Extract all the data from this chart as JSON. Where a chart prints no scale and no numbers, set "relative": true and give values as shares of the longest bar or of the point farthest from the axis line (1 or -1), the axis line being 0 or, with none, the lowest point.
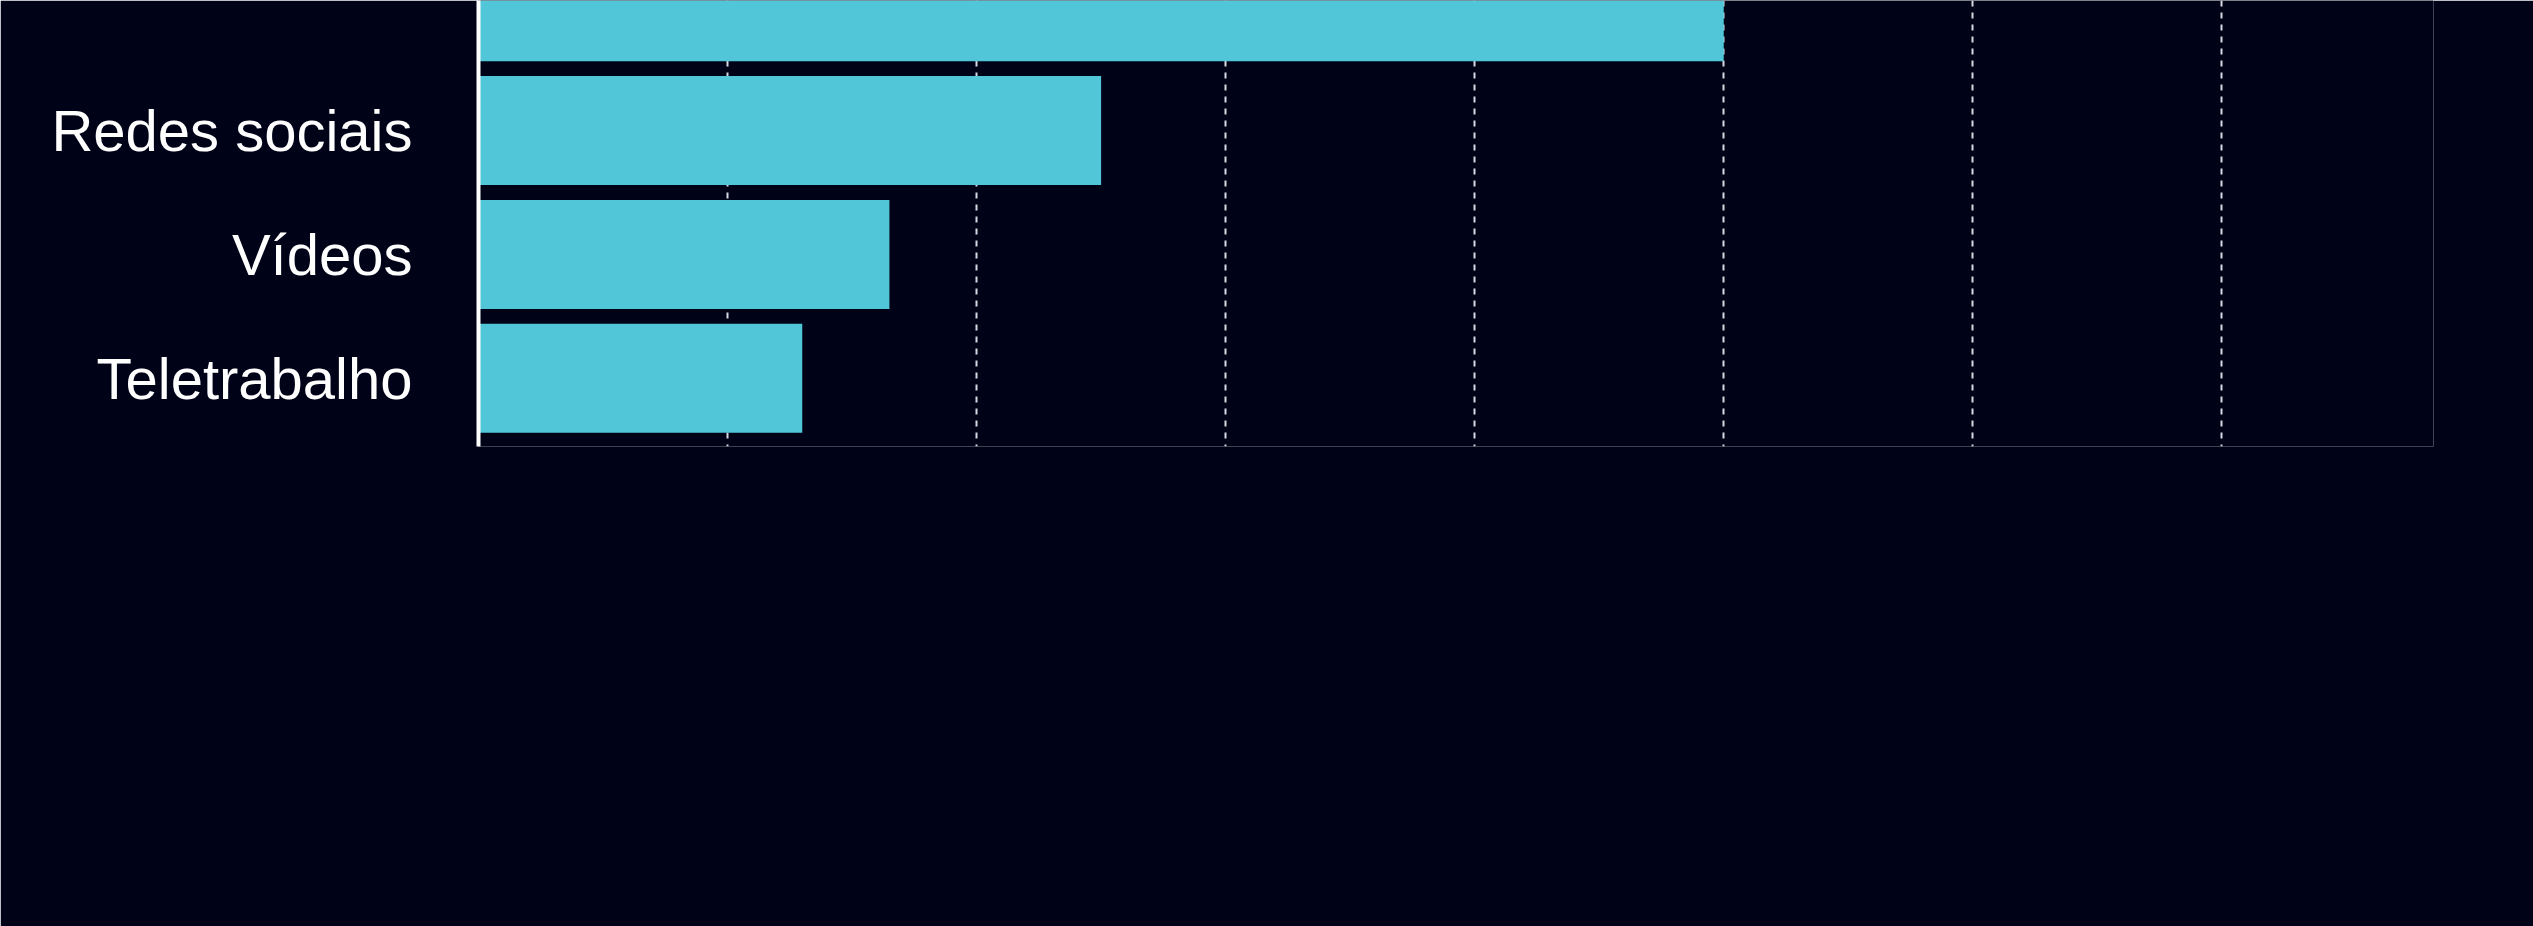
{
  "chart_data": {
    "type": "bar",
    "orientation": "horizontal",
    "relative": true,
    "categories": [
      null,
      "Redes sociais",
      "Vídeos",
      "Teletrabalho"
    ],
    "values": [
      1,
      0.5,
      0.33,
      0.26
    ],
    "color": "#50c6d8",
    "grid": "x"
  }
}
